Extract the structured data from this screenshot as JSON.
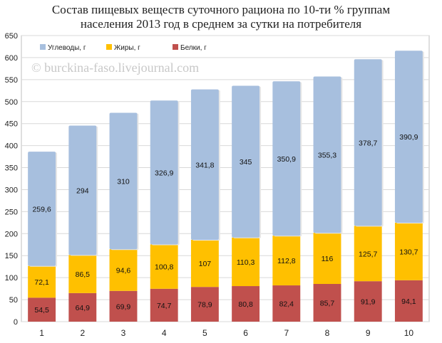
{
  "chart_data": {
    "type": "bar",
    "stacked": true,
    "title_line1": "Состав пищевых веществ суточного рациона по 10-ти % группам",
    "title_line2": "населения 2013 год в среднем за сутки на потребителя",
    "watermark": "© burckina-faso.livejournal.com",
    "categories": [
      "1",
      "2",
      "3",
      "4",
      "5",
      "6",
      "7",
      "8",
      "9",
      "10"
    ],
    "series": [
      {
        "name": "Белки, г",
        "color": "#c0504d",
        "values": [
          "54,5",
          "64,9",
          "69,9",
          "74,7",
          "78,9",
          "80,8",
          "82,4",
          "85,7",
          "91,9",
          "94,1"
        ]
      },
      {
        "name": "Жиры, г",
        "color": "#ffc000",
        "values": [
          "72,1",
          "86,5",
          "94,6",
          "100,8",
          "107",
          "110,3",
          "112,8",
          "116",
          "125,7",
          "130,7"
        ]
      },
      {
        "name": "Углеводы, г",
        "color": "#a7bfde",
        "values": [
          "259,6",
          "294",
          "310",
          "326,9",
          "341,8",
          "345",
          "350,9",
          "355,3",
          "378,7",
          "390,9"
        ]
      }
    ],
    "legend_order": [
      2,
      1,
      0
    ],
    "legend_position": "top-left",
    "ylim": [
      0,
      650
    ],
    "yticks": [
      "0",
      "50",
      "100",
      "150",
      "200",
      "250",
      "300",
      "350",
      "400",
      "450",
      "500",
      "550",
      "600",
      "650"
    ],
    "grid": true
  }
}
